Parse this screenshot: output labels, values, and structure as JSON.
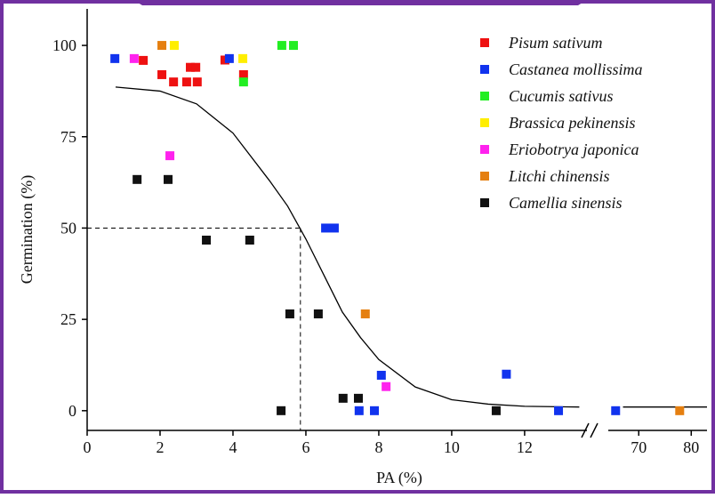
{
  "chart_data": {
    "type": "scatter",
    "xlabel": "PA (%)",
    "ylabel": "Germination (%)",
    "xlim": [
      0,
      83
    ],
    "xbreak": [
      14.1,
      64.2
    ],
    "ylim": [
      -5.4,
      110
    ],
    "xticks": [
      0,
      2,
      4,
      6,
      8,
      10,
      12,
      70,
      80
    ],
    "yticks": [
      0,
      25,
      50,
      75,
      100
    ],
    "legend": "upper right",
    "series": [
      {
        "name": "Pisum sativum",
        "color": "#ee1111",
        "x": [
          1.54,
          2.05,
          2.37,
          2.73,
          2.83,
          2.98,
          3.02,
          3.78,
          4.29
        ],
        "values": [
          95.9,
          92,
          90,
          90,
          94,
          94,
          90,
          96,
          92
        ]
      },
      {
        "name": "Castanea mollissima",
        "color": "#1133ee",
        "x": [
          0.76,
          3.9,
          6.54,
          6.78,
          8.07,
          7.46,
          7.88,
          11.5,
          12.93,
          65.6
        ],
        "values": [
          96.4,
          96.4,
          50,
          50,
          9.7,
          0,
          0,
          10,
          0,
          0
        ]
      },
      {
        "name": "Cucumis sativus",
        "color": "#22ee22",
        "x": [
          5.34,
          5.66,
          4.29
        ],
        "values": [
          100,
          100,
          90
        ]
      },
      {
        "name": "Brassica pekinensis",
        "color": "#ffee00",
        "x": [
          2.39,
          4.27
        ],
        "values": [
          100,
          96.4
        ]
      },
      {
        "name": "Eriobotrya japonica",
        "color": "#ff22ee",
        "x": [
          1.29,
          2.27,
          8.2
        ],
        "values": [
          96.4,
          69.8,
          6.6
        ]
      },
      {
        "name": "Litchi chinensis",
        "color": "#e57f10",
        "x": [
          2.05,
          7.63,
          77.8
        ],
        "values": [
          100,
          26.5,
          0
        ]
      },
      {
        "name": "Camellia sinensis",
        "color": "#111111",
        "x": [
          1.37,
          2.22,
          3.27,
          4.46,
          5.56,
          6.34,
          7.02,
          7.44,
          5.32,
          11.22
        ],
        "values": [
          63.3,
          63.3,
          46.7,
          46.7,
          26.5,
          26.5,
          3.4,
          3.4,
          0,
          0
        ]
      }
    ],
    "fit": {
      "x": [
        0.78,
        2,
        3,
        4,
        5,
        5.5,
        6,
        6.5,
        7,
        7.5,
        8,
        9,
        10,
        11,
        12,
        13.5,
        null,
        67,
        83
      ],
      "values": [
        88.6,
        87.5,
        84,
        76,
        63,
        56,
        47,
        37,
        27,
        20,
        14,
        6.5,
        3,
        1.8,
        1.2,
        1,
        null,
        1,
        1
      ]
    },
    "reference": {
      "x": 5.85,
      "y": 50
    }
  }
}
